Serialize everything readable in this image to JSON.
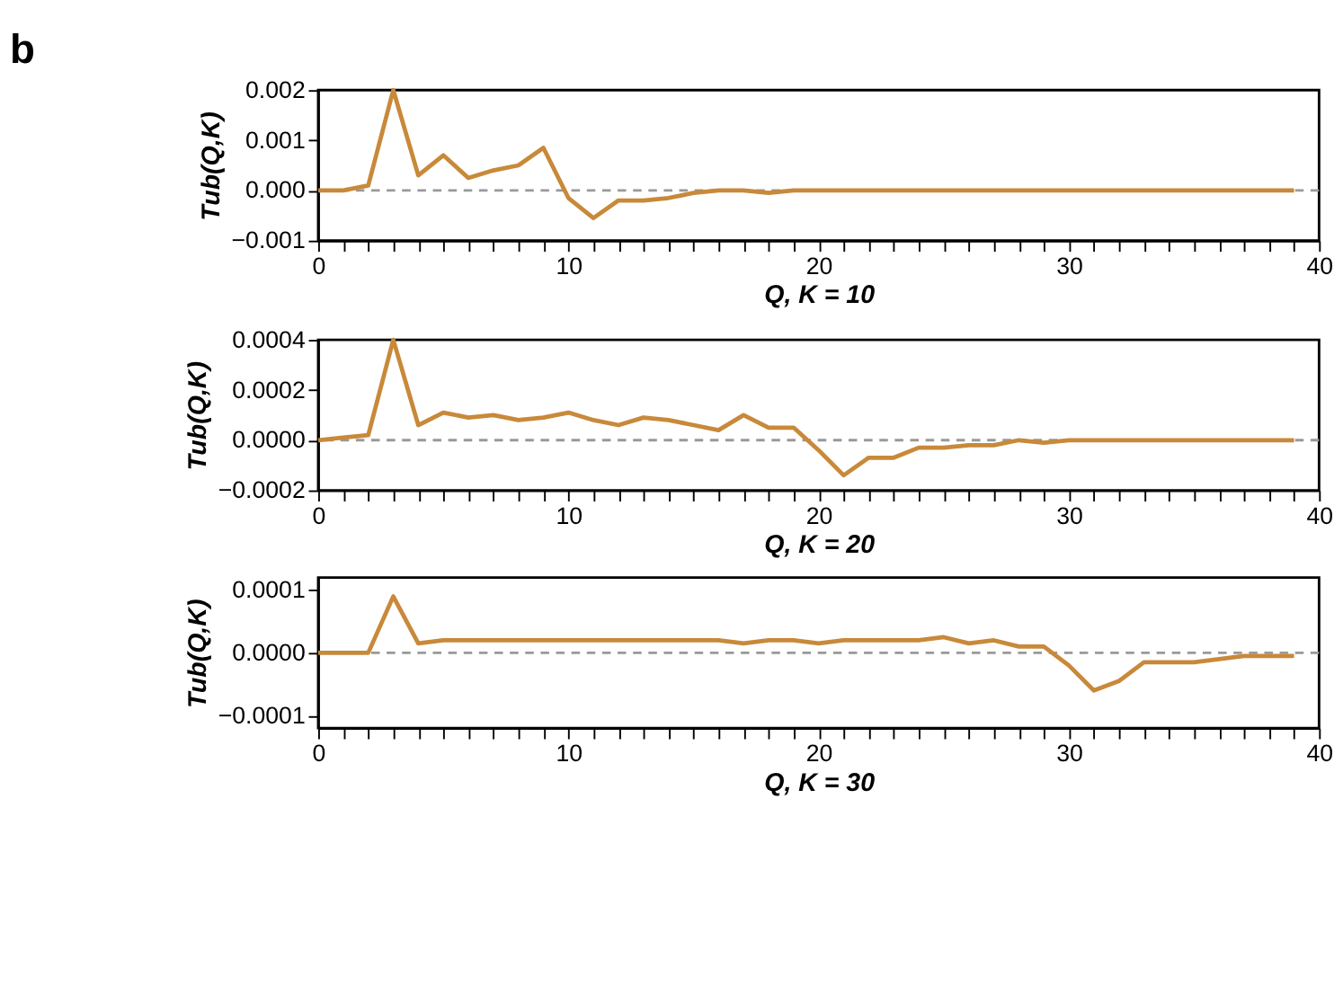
{
  "chart_data": [
    {
      "type": "line",
      "title": "b",
      "xlabel": "Q, K = 10",
      "ylabel": "Tub(Q,K)",
      "x": [
        0,
        1,
        2,
        3,
        4,
        5,
        6,
        7,
        8,
        9,
        10,
        11,
        12,
        13,
        14,
        15,
        16,
        17,
        18,
        19,
        20,
        21,
        22,
        23,
        24,
        25,
        26,
        27,
        28,
        29,
        30,
        31,
        32,
        33,
        34,
        35,
        36,
        37,
        38,
        39
      ],
      "series": [
        {
          "color": "#c8893a",
          "values": [
            0,
            0,
            0.0001,
            0.002,
            0.0003,
            0.0007,
            0.00025,
            0.0004,
            0.0005,
            0.00085,
            -0.00015,
            -0.00055,
            -0.0002,
            -0.0002,
            -0.00015,
            -5e-05,
            0,
            0,
            -5e-05,
            0,
            0,
            0,
            0,
            0,
            0,
            0,
            0,
            0,
            0,
            0,
            0,
            0,
            0,
            0,
            0,
            0,
            0,
            0,
            0,
            0
          ]
        }
      ],
      "xlim": [
        0,
        40
      ],
      "xticks": [
        0,
        {
          "value": 1,
          "label": null
        },
        {
          "value": 2,
          "label": null
        },
        {
          "value": 3,
          "label": null
        },
        {
          "value": 4,
          "label": null
        },
        {
          "value": 5,
          "label": null
        },
        {
          "value": 6,
          "label": null
        },
        {
          "value": 7,
          "label": null
        },
        {
          "value": 8,
          "label": null
        },
        {
          "value": 9,
          "label": null
        },
        10,
        {
          "value": 11,
          "label": null
        },
        {
          "value": 12,
          "label": null
        },
        {
          "value": 13,
          "label": null
        },
        {
          "value": 14,
          "label": null
        },
        {
          "value": 15,
          "label": null
        },
        {
          "value": 16,
          "label": null
        },
        {
          "value": 17,
          "label": null
        },
        {
          "value": 18,
          "label": null
        },
        {
          "value": 19,
          "label": null
        },
        20,
        {
          "value": 21,
          "label": null
        },
        {
          "value": 22,
          "label": null
        },
        {
          "value": 23,
          "label": null
        },
        {
          "value": 24,
          "label": null
        },
        {
          "value": 25,
          "label": null
        },
        {
          "value": 26,
          "label": null
        },
        {
          "value": 27,
          "label": null
        },
        {
          "value": 28,
          "label": null
        },
        {
          "value": 29,
          "label": null
        },
        30,
        {
          "value": 31,
          "label": null
        },
        {
          "value": 32,
          "label": null
        },
        {
          "value": 33,
          "label": null
        },
        {
          "value": 34,
          "label": null
        },
        {
          "value": 35,
          "label": null
        },
        {
          "value": 36,
          "label": null
        },
        {
          "value": 37,
          "label": null
        },
        {
          "value": 38,
          "label": null
        },
        {
          "value": 39,
          "label": null
        },
        40
      ],
      "ylim": [
        -0.001,
        0.002
      ],
      "yticks": [
        {
          "value": -0.001,
          "label": "−0.001"
        },
        {
          "value": 0,
          "label": "0.000"
        },
        {
          "value": 0.001,
          "label": "0.001"
        },
        {
          "value": 0.002,
          "label": "0.002"
        }
      ],
      "ref_lines": [
        {
          "axis": "y",
          "value": 0,
          "color": "#999999",
          "line_style": "dashed"
        }
      ],
      "grid": false,
      "legend": false,
      "marker": "none",
      "line_style": "solid"
    },
    {
      "type": "line",
      "xlabel": "Q, K = 20",
      "ylabel": "Tub(Q,K)",
      "x": [
        0,
        1,
        2,
        3,
        4,
        5,
        6,
        7,
        8,
        9,
        10,
        11,
        12,
        13,
        14,
        15,
        16,
        17,
        18,
        19,
        20,
        21,
        22,
        23,
        24,
        25,
        26,
        27,
        28,
        29,
        30,
        31,
        32,
        33,
        34,
        35,
        36,
        37,
        38,
        39
      ],
      "series": [
        {
          "color": "#c8893a",
          "values": [
            0,
            1e-05,
            2e-05,
            0.0004,
            6e-05,
            0.00011,
            9e-05,
            0.0001,
            8e-05,
            9e-05,
            0.00011,
            8e-05,
            6e-05,
            9e-05,
            8e-05,
            6e-05,
            4e-05,
            0.0001,
            5e-05,
            5e-05,
            -4e-05,
            -0.00014,
            -7e-05,
            -7e-05,
            -3e-05,
            -3e-05,
            -2e-05,
            -2e-05,
            0,
            -1e-05,
            0,
            0,
            0,
            0,
            0,
            0,
            0,
            0,
            0,
            0
          ]
        }
      ],
      "xlim": [
        0,
        40
      ],
      "xticks": [
        0,
        {
          "value": 1,
          "label": null
        },
        {
          "value": 2,
          "label": null
        },
        {
          "value": 3,
          "label": null
        },
        {
          "value": 4,
          "label": null
        },
        {
          "value": 5,
          "label": null
        },
        {
          "value": 6,
          "label": null
        },
        {
          "value": 7,
          "label": null
        },
        {
          "value": 8,
          "label": null
        },
        {
          "value": 9,
          "label": null
        },
        10,
        {
          "value": 11,
          "label": null
        },
        {
          "value": 12,
          "label": null
        },
        {
          "value": 13,
          "label": null
        },
        {
          "value": 14,
          "label": null
        },
        {
          "value": 15,
          "label": null
        },
        {
          "value": 16,
          "label": null
        },
        {
          "value": 17,
          "label": null
        },
        {
          "value": 18,
          "label": null
        },
        {
          "value": 19,
          "label": null
        },
        20,
        {
          "value": 21,
          "label": null
        },
        {
          "value": 22,
          "label": null
        },
        {
          "value": 23,
          "label": null
        },
        {
          "value": 24,
          "label": null
        },
        {
          "value": 25,
          "label": null
        },
        {
          "value": 26,
          "label": null
        },
        {
          "value": 27,
          "label": null
        },
        {
          "value": 28,
          "label": null
        },
        {
          "value": 29,
          "label": null
        },
        30,
        {
          "value": 31,
          "label": null
        },
        {
          "value": 32,
          "label": null
        },
        {
          "value": 33,
          "label": null
        },
        {
          "value": 34,
          "label": null
        },
        {
          "value": 35,
          "label": null
        },
        {
          "value": 36,
          "label": null
        },
        {
          "value": 37,
          "label": null
        },
        {
          "value": 38,
          "label": null
        },
        {
          "value": 39,
          "label": null
        },
        40
      ],
      "ylim": [
        -0.0002,
        0.0004
      ],
      "yticks": [
        {
          "value": -0.0002,
          "label": "−0.0002"
        },
        {
          "value": 0,
          "label": "0.0000"
        },
        {
          "value": 0.0002,
          "label": "0.0002"
        },
        {
          "value": 0.0004,
          "label": "0.0004"
        }
      ],
      "ref_lines": [
        {
          "axis": "y",
          "value": 0,
          "color": "#999999",
          "line_style": "dashed"
        }
      ],
      "grid": false,
      "legend": false,
      "marker": "none",
      "line_style": "solid"
    },
    {
      "type": "line",
      "xlabel": "Q, K = 30",
      "ylabel": "Tub(Q,K)",
      "x": [
        0,
        1,
        2,
        3,
        4,
        5,
        6,
        7,
        8,
        9,
        10,
        11,
        12,
        13,
        14,
        15,
        16,
        17,
        18,
        19,
        20,
        21,
        22,
        23,
        24,
        25,
        26,
        27,
        28,
        29,
        30,
        31,
        32,
        33,
        34,
        35,
        36,
        37,
        38,
        39
      ],
      "series": [
        {
          "color": "#c8893a",
          "values": [
            0,
            0,
            0,
            9e-05,
            1.5e-05,
            2e-05,
            2e-05,
            2e-05,
            2e-05,
            2e-05,
            2e-05,
            2e-05,
            2e-05,
            2e-05,
            2e-05,
            2e-05,
            2e-05,
            1.5e-05,
            2e-05,
            2e-05,
            1.5e-05,
            2e-05,
            2e-05,
            2e-05,
            2e-05,
            2.5e-05,
            1.5e-05,
            2e-05,
            1e-05,
            1e-05,
            -2e-05,
            -6e-05,
            -4.5e-05,
            -1.5e-05,
            -1.5e-05,
            -1.5e-05,
            -1e-05,
            -5e-06,
            -5e-06,
            -5e-06
          ]
        }
      ],
      "xlim": [
        0,
        40
      ],
      "xticks": [
        0,
        {
          "value": 1,
          "label": null
        },
        {
          "value": 2,
          "label": null
        },
        {
          "value": 3,
          "label": null
        },
        {
          "value": 4,
          "label": null
        },
        {
          "value": 5,
          "label": null
        },
        {
          "value": 6,
          "label": null
        },
        {
          "value": 7,
          "label": null
        },
        {
          "value": 8,
          "label": null
        },
        {
          "value": 9,
          "label": null
        },
        10,
        {
          "value": 11,
          "label": null
        },
        {
          "value": 12,
          "label": null
        },
        {
          "value": 13,
          "label": null
        },
        {
          "value": 14,
          "label": null
        },
        {
          "value": 15,
          "label": null
        },
        {
          "value": 16,
          "label": null
        },
        {
          "value": 17,
          "label": null
        },
        {
          "value": 18,
          "label": null
        },
        {
          "value": 19,
          "label": null
        },
        20,
        {
          "value": 21,
          "label": null
        },
        {
          "value": 22,
          "label": null
        },
        {
          "value": 23,
          "label": null
        },
        {
          "value": 24,
          "label": null
        },
        {
          "value": 25,
          "label": null
        },
        {
          "value": 26,
          "label": null
        },
        {
          "value": 27,
          "label": null
        },
        {
          "value": 28,
          "label": null
        },
        {
          "value": 29,
          "label": null
        },
        30,
        {
          "value": 31,
          "label": null
        },
        {
          "value": 32,
          "label": null
        },
        {
          "value": 33,
          "label": null
        },
        {
          "value": 34,
          "label": null
        },
        {
          "value": 35,
          "label": null
        },
        {
          "value": 36,
          "label": null
        },
        {
          "value": 37,
          "label": null
        },
        {
          "value": 38,
          "label": null
        },
        {
          "value": 39,
          "label": null
        },
        40
      ],
      "ylim": [
        -0.00012,
        0.00012
      ],
      "yticks": [
        {
          "value": -0.0001,
          "label": "−0.0001"
        },
        {
          "value": 0,
          "label": "0.0000"
        },
        {
          "value": 0.0001,
          "label": "0.0001"
        }
      ],
      "ref_lines": [
        {
          "axis": "y",
          "value": 0,
          "color": "#999999",
          "line_style": "dashed"
        }
      ],
      "grid": false,
      "legend": false,
      "marker": "none",
      "line_style": "solid"
    }
  ]
}
